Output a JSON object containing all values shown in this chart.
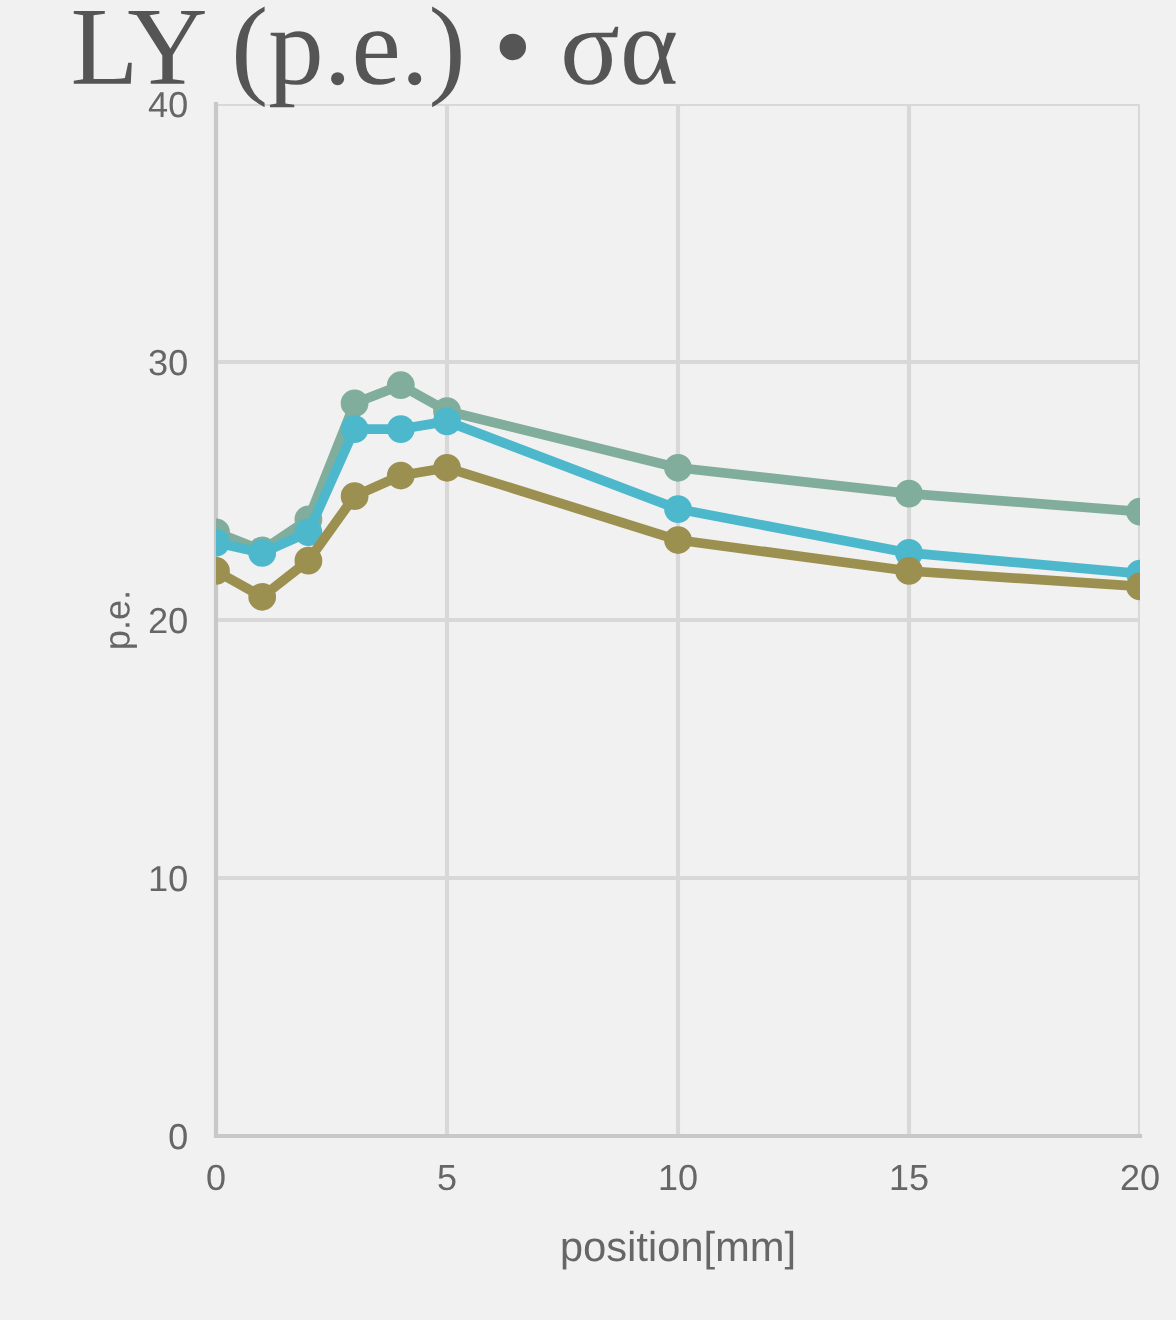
{
  "chart_data": {
    "type": "line",
    "title": "LY (p.e.) • σα",
    "xlabel": "position[mm]",
    "ylabel": "p.e.",
    "x": [
      0,
      1,
      2,
      3,
      4,
      5,
      10,
      15,
      20
    ],
    "series": [
      {
        "color": "#80ad9c",
        "values": [
          23.4,
          22.7,
          23.9,
          28.4,
          29.1,
          28.1,
          25.9,
          24.9,
          24.2
        ]
      },
      {
        "color": "#4db8cc",
        "values": [
          23.0,
          22.6,
          23.4,
          27.4,
          27.4,
          27.7,
          24.3,
          22.6,
          21.8
        ]
      },
      {
        "color": "#9b9050",
        "values": [
          21.9,
          20.9,
          22.3,
          24.8,
          25.6,
          25.9,
          23.1,
          21.9,
          21.3
        ]
      }
    ],
    "xlim": [
      0,
      20
    ],
    "ylim": [
      0,
      40
    ],
    "xticks": [
      0,
      5,
      10,
      15,
      20
    ],
    "yticks": [
      0,
      10,
      20,
      30,
      40
    ],
    "grid": true,
    "marker": "circle",
    "line_style": "solid"
  }
}
